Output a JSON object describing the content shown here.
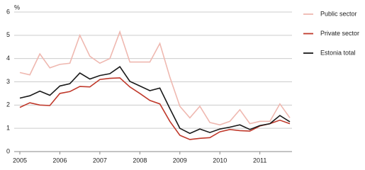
{
  "chart_data": {
    "type": "line",
    "y_label": "%",
    "categories": [
      "2005",
      null,
      null,
      null,
      "2006",
      null,
      null,
      null,
      "2007",
      null,
      null,
      null,
      "2008",
      null,
      null,
      null,
      "2009",
      null,
      null,
      null,
      "2010",
      null,
      null,
      null,
      "2011",
      null,
      null,
      null
    ],
    "series": [
      {
        "name": "Public sector",
        "color": "#efb8b0",
        "values": [
          3.4,
          3.3,
          4.2,
          3.6,
          3.75,
          3.8,
          5.0,
          4.1,
          3.8,
          4.0,
          5.15,
          3.85,
          3.85,
          3.85,
          4.65,
          3.2,
          1.95,
          1.45,
          1.95,
          1.25,
          1.15,
          1.3,
          1.8,
          1.2,
          1.3,
          1.3,
          2.05,
          1.45
        ]
      },
      {
        "name": "Private sector",
        "color": "#c0392b",
        "values": [
          1.9,
          2.1,
          2.0,
          1.98,
          2.5,
          2.58,
          2.8,
          2.78,
          3.1,
          3.15,
          3.17,
          2.78,
          2.5,
          2.2,
          2.05,
          1.3,
          0.7,
          0.52,
          0.57,
          0.6,
          0.85,
          0.95,
          0.9,
          0.88,
          1.1,
          1.2,
          1.35,
          1.2
        ]
      },
      {
        "name": "Estonia total",
        "color": "#1a1a1a",
        "values": [
          2.3,
          2.4,
          2.6,
          2.42,
          2.82,
          2.92,
          3.38,
          3.12,
          3.27,
          3.35,
          3.65,
          3.02,
          2.82,
          2.62,
          2.73,
          1.85,
          1.0,
          0.78,
          0.97,
          0.82,
          0.97,
          1.05,
          1.15,
          0.95,
          1.12,
          1.2,
          1.55,
          1.28
        ]
      }
    ],
    "ylim": [
      0,
      6
    ],
    "yticks": [
      0,
      1,
      2,
      3,
      4,
      5,
      6
    ],
    "grid": true,
    "legend": "right"
  }
}
